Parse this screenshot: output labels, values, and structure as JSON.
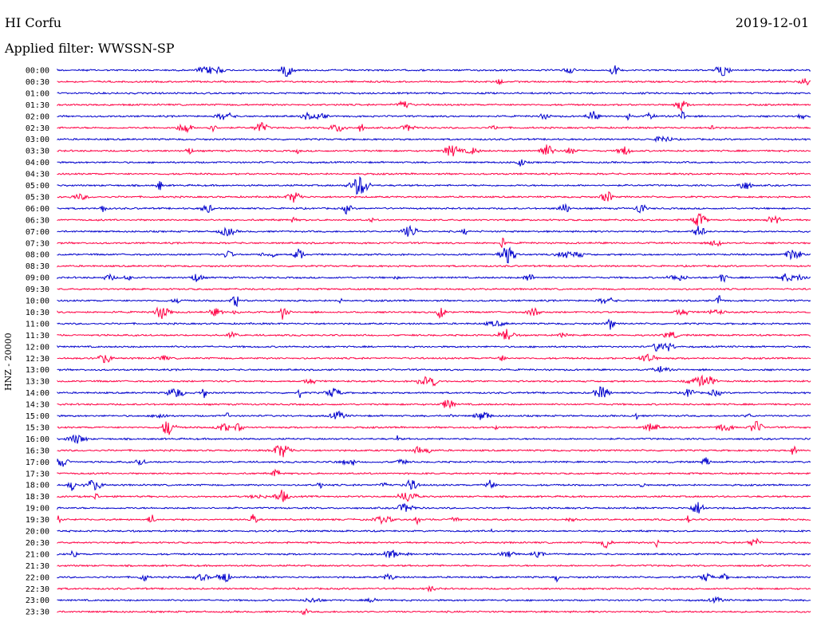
{
  "header": {
    "station": "HI Corfu",
    "date": "2019-12-01",
    "filter": "Applied filter: WWSSN-SP",
    "channel": "HNZ - 20000"
  },
  "chart_data": {
    "type": "line",
    "title": "HI Corfu",
    "ylabel": "HNZ - 20000",
    "colors": [
      "#0000cc",
      "#ff0044"
    ],
    "rows": [
      "00:00",
      "00:30",
      "01:00",
      "01:30",
      "02:00",
      "02:30",
      "03:00",
      "03:30",
      "04:00",
      "04:30",
      "05:00",
      "05:30",
      "06:00",
      "06:30",
      "07:00",
      "07:30",
      "08:00",
      "08:30",
      "09:00",
      "09:30",
      "10:00",
      "10:30",
      "11:00",
      "11:30",
      "12:00",
      "12:30",
      "13:00",
      "13:30",
      "14:00",
      "14:30",
      "15:00",
      "15:30",
      "16:00",
      "16:30",
      "17:00",
      "17:30",
      "18:00",
      "18:30",
      "19:00",
      "19:30",
      "20:00",
      "20:30",
      "21:00",
      "21:30",
      "22:00",
      "22:30",
      "23:00",
      "23:30"
    ]
  }
}
